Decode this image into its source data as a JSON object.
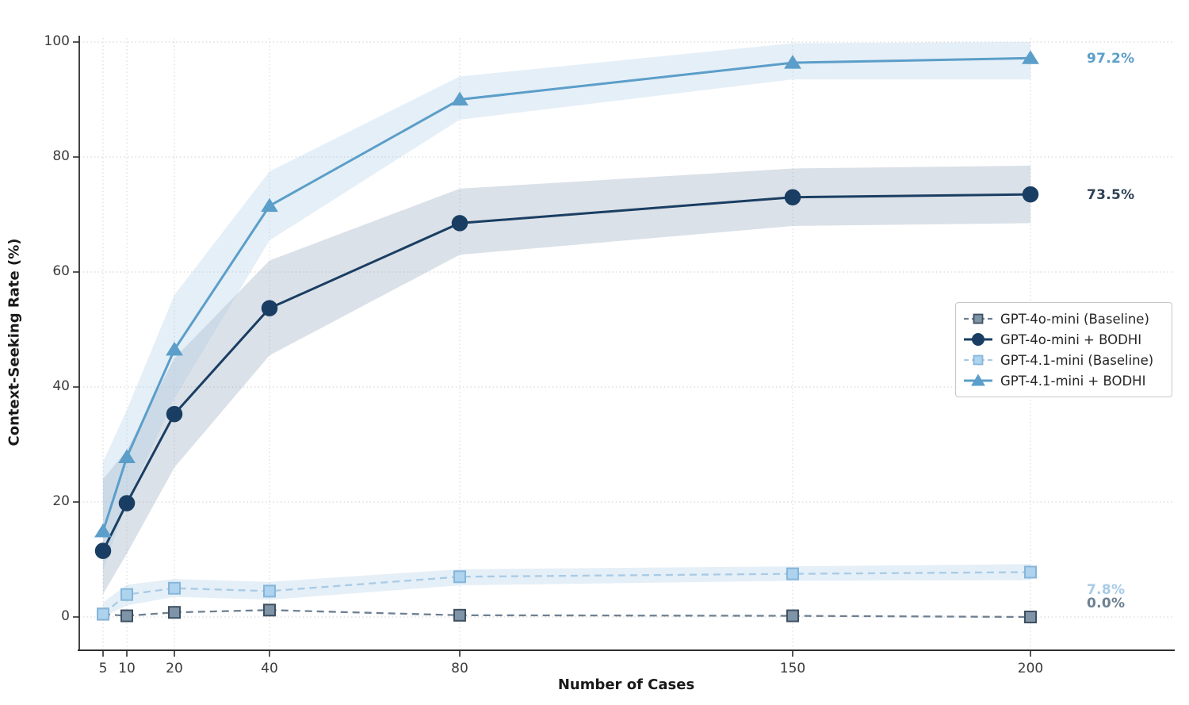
{
  "chart_data": {
    "type": "line",
    "title": "",
    "xlabel": "Number of Cases",
    "ylabel": "Context-Seeking Rate (%)",
    "x": [
      5,
      10,
      20,
      40,
      80,
      150,
      200
    ],
    "xtick_labels": [
      "5",
      "10",
      "20",
      "40",
      "80",
      "150",
      "200"
    ],
    "ytick_values": [
      0,
      20,
      40,
      60,
      80,
      100
    ],
    "ytick_labels": [
      "0",
      "20",
      "40",
      "60",
      "80",
      "100"
    ],
    "ylim": [
      0,
      100
    ],
    "xlim": [
      0,
      230
    ],
    "grid": "dotted",
    "legend_position": "center-right",
    "series": [
      {
        "name": "GPT-4o-mini (Baseline)",
        "line_style": "dashed",
        "marker": "square",
        "color": "#6e8091",
        "marker_fill": "#7f94a6",
        "marker_edge": "#3e5062",
        "values": [
          0.5,
          0.2,
          0.8,
          1.2,
          0.3,
          0.2,
          0.0
        ],
        "end_label": "0.0%",
        "end_label_color": "#6e8091"
      },
      {
        "name": "GPT-4o-mini + BODHI",
        "line_style": "solid",
        "marker": "circle",
        "color": "#1a3e63",
        "marker_fill": "#1a3e63",
        "marker_edge": "#1a3e63",
        "values": [
          11.5,
          19.8,
          35.3,
          53.7,
          68.5,
          73.0,
          73.5
        ],
        "band_lower": [
          4,
          11,
          26,
          45.5,
          63,
          68,
          68.5
        ],
        "band_upper": [
          24,
          29,
          45,
          62,
          74.5,
          78,
          78.5
        ],
        "band_color": "#8fa3b8",
        "end_label": "73.5%",
        "end_label_color": "#2e4154"
      },
      {
        "name": "GPT-4.1-mini (Baseline)",
        "line_style": "dashed",
        "marker": "square",
        "color": "#a8cbe6",
        "marker_fill": "#aed3ee",
        "marker_edge": "#85b5da",
        "values": [
          0.5,
          3.9,
          5.0,
          4.5,
          7.0,
          7.5,
          7.8
        ],
        "band_lower": [
          0,
          2,
          3.5,
          3,
          5.5,
          6.3,
          6.4
        ],
        "band_upper": [
          2.5,
          5.6,
          6.6,
          6.1,
          8.3,
          8.8,
          9.2
        ],
        "band_color": "#a8cbe6",
        "end_label": "7.8%",
        "end_label_color": "#a8cbe6"
      },
      {
        "name": "GPT-4.1-mini + BODHI",
        "line_style": "solid",
        "marker": "triangle",
        "color": "#5b9ec9",
        "marker_fill": "#5b9ec9",
        "marker_edge": "#5b9ec9",
        "values": [
          14.9,
          27.8,
          46.5,
          71.5,
          90.0,
          96.4,
          97.2
        ],
        "band_lower": [
          8,
          20,
          38,
          65.5,
          86.5,
          93.5,
          93.5
        ],
        "band_upper": [
          27,
          36,
          56,
          77.5,
          94,
          99.8,
          100
        ],
        "band_color": "#a8cbe6",
        "end_label": "97.2%",
        "end_label_color": "#5b9ec9"
      }
    ]
  }
}
